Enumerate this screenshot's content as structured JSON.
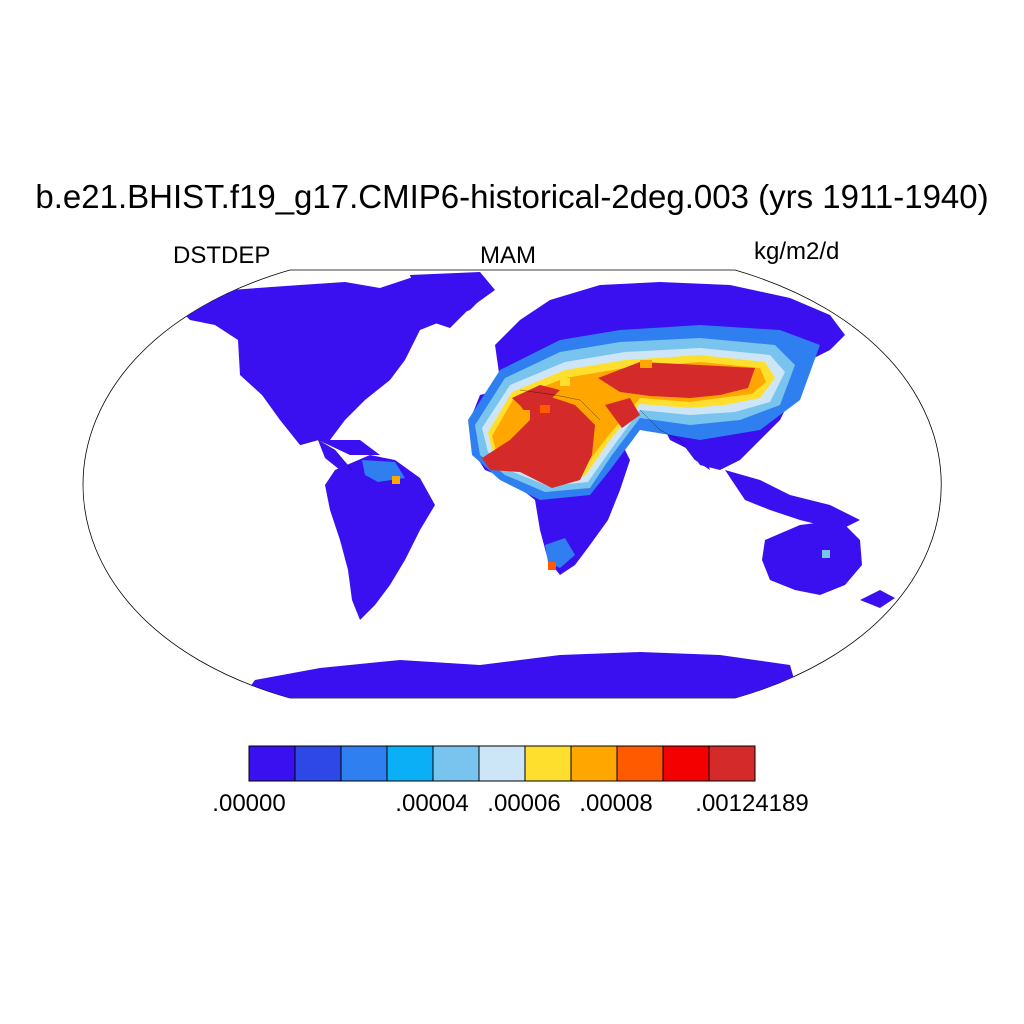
{
  "header": {
    "title": "b.e21.BHIST.f19_g17.CMIP6-historical-2deg.003 (yrs 1911-1940)",
    "variable": "DSTDEP",
    "season": "MAM",
    "units": "kg/m2/d"
  },
  "legend": {
    "colors": [
      "#3a10f0",
      "#2e48e8",
      "#2f7ff0",
      "#0aaff5",
      "#78c4ee",
      "#cde6f7",
      "#ffdf2e",
      "#ffa600",
      "#ff5a00",
      "#f50000",
      "#d42a2a"
    ],
    "labels": [
      ".00000",
      ".00004",
      ".00006",
      ".00008",
      ".00124189"
    ]
  },
  "map": {
    "projection": "Robinson",
    "background_land_value_color": "#3a10f0",
    "regions_of_high_deposition": [
      "Sahara",
      "Arabian Peninsula",
      "Central Asia deserts",
      "Taklamakan/Gobi"
    ]
  }
}
